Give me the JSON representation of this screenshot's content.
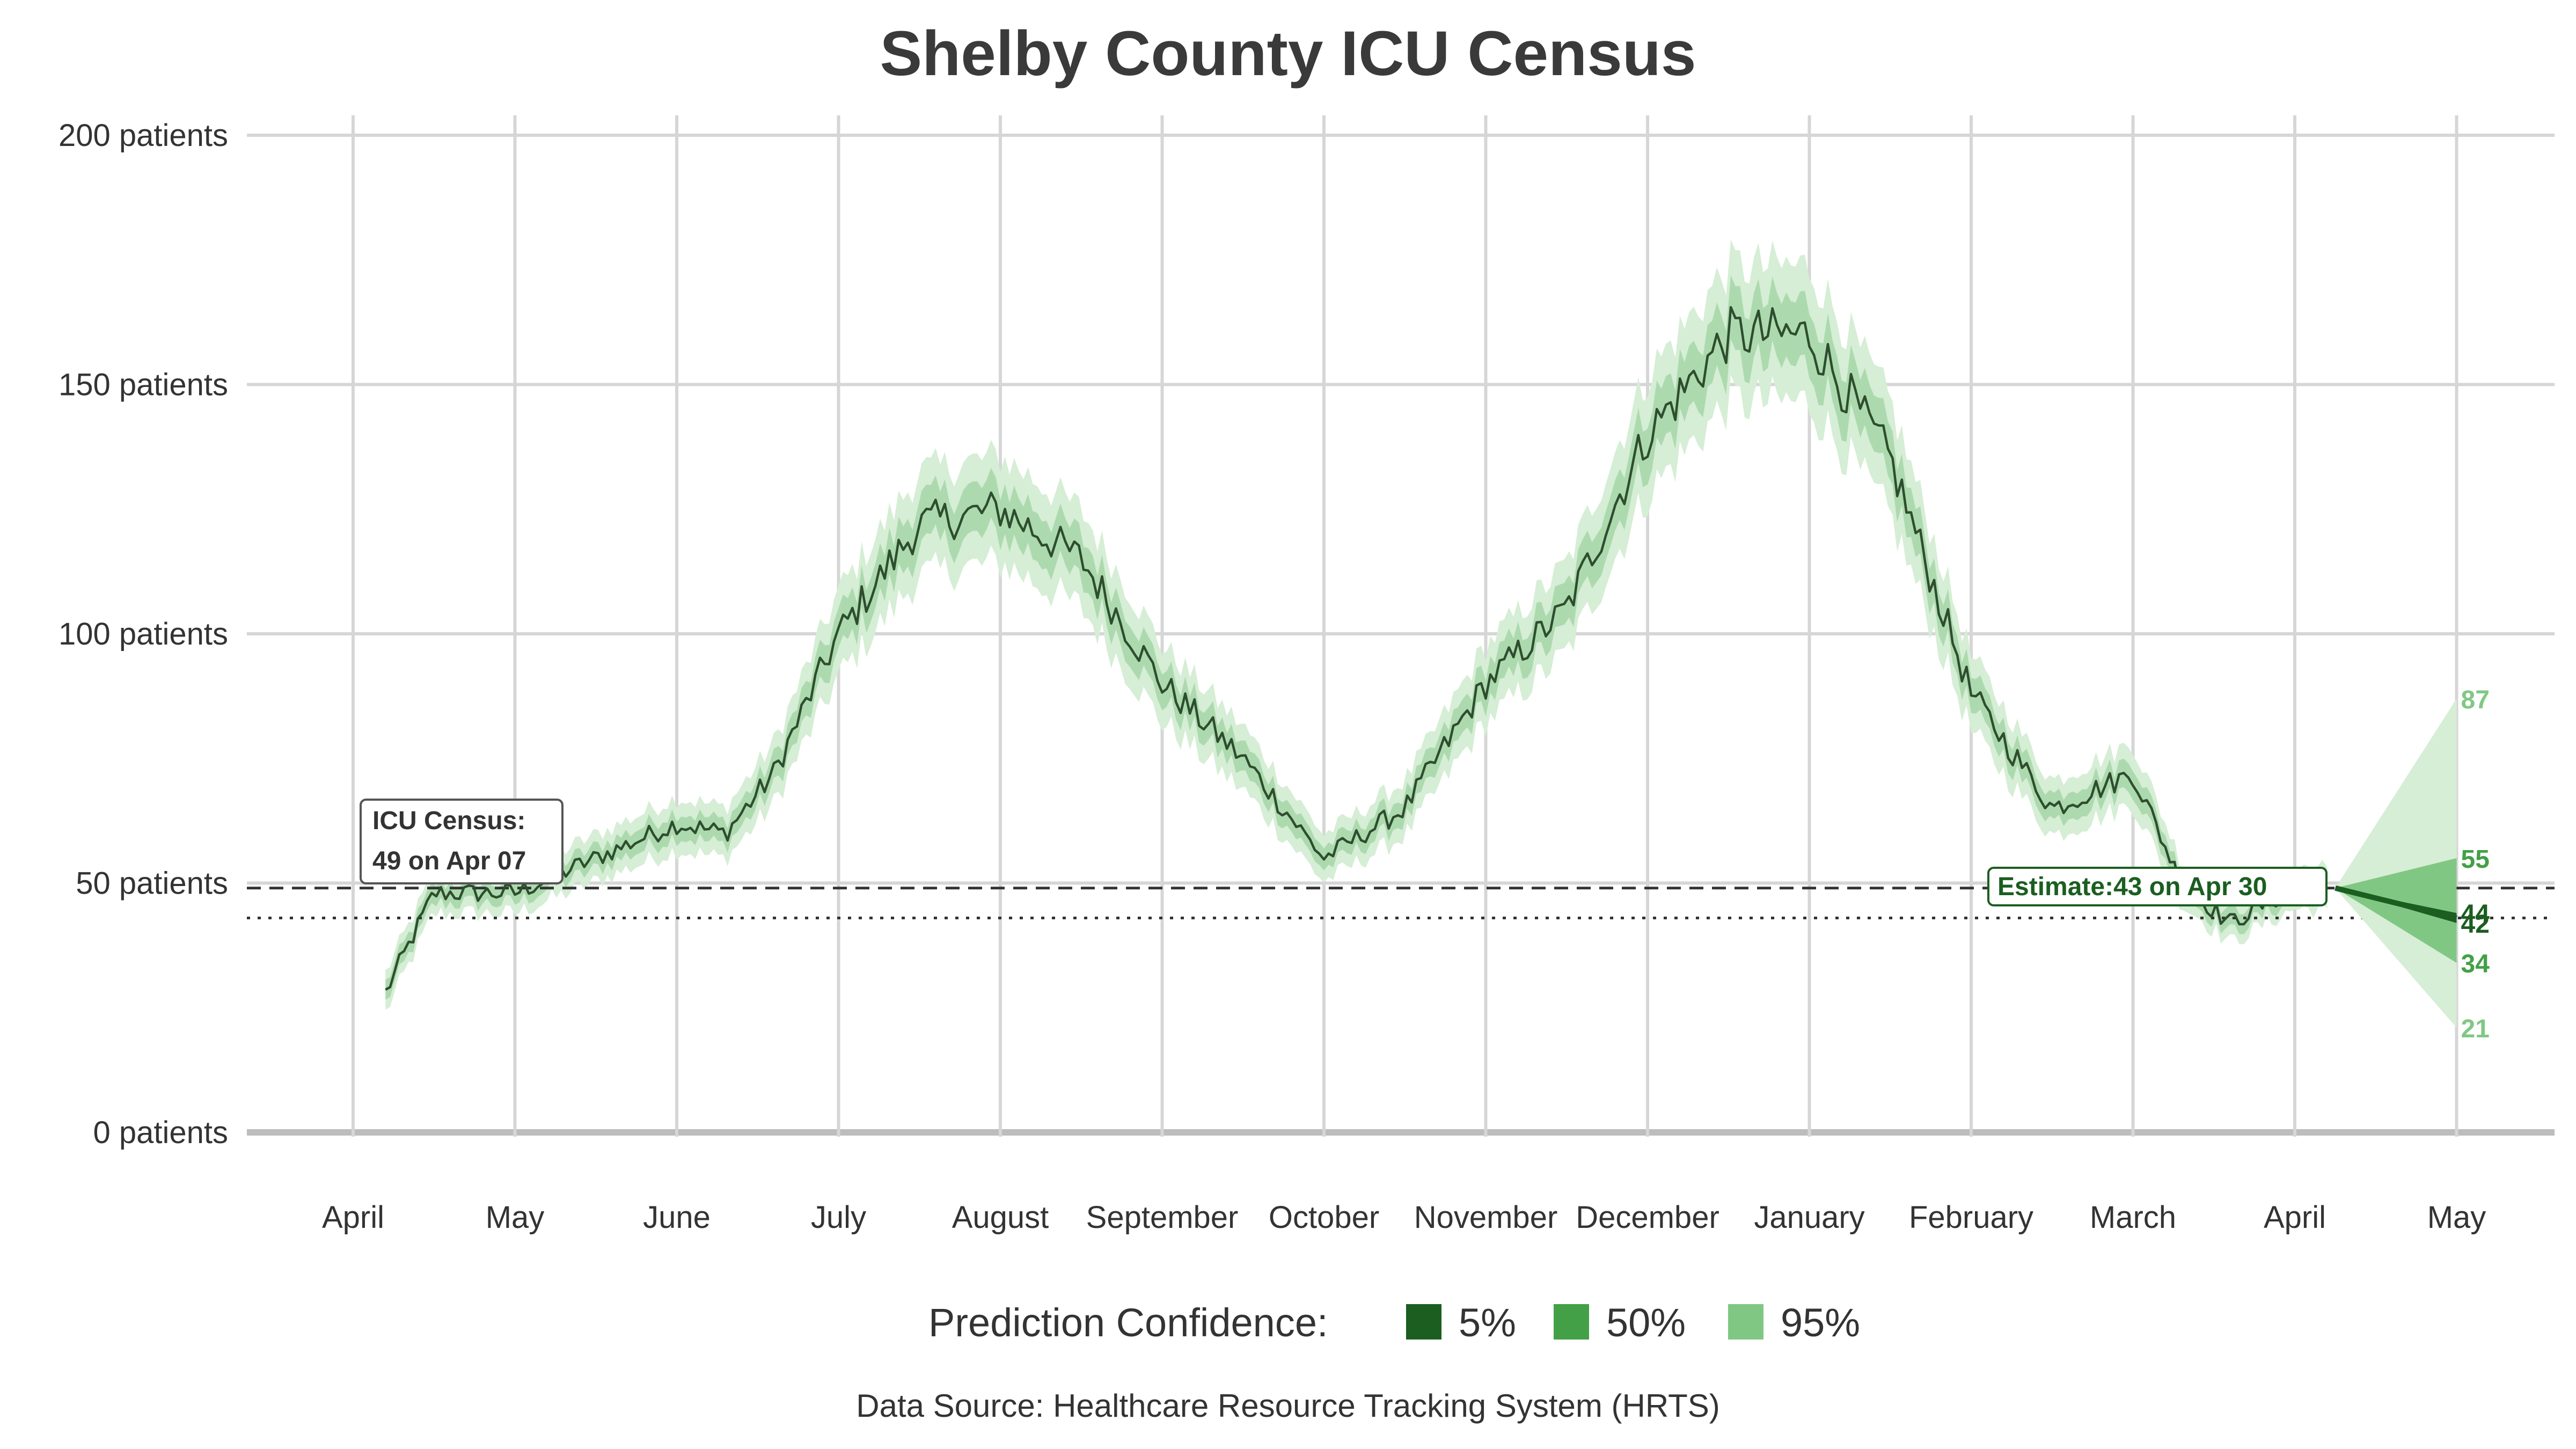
{
  "chart_data": {
    "type": "line",
    "title": "Shelby County ICU Census",
    "xlabel": "",
    "ylabel": "",
    "ylim": [
      0,
      200
    ],
    "y_ticks": [
      {
        "value": 0,
        "label": "0 patients"
      },
      {
        "value": 50,
        "label": "50 patients"
      },
      {
        "value": 100,
        "label": "100 patients"
      },
      {
        "value": 150,
        "label": "150 patients"
      },
      {
        "value": 200,
        "label": "200 patients"
      }
    ],
    "x_ticks": [
      "April",
      "May",
      "June",
      "July",
      "August",
      "September",
      "October",
      "November",
      "December",
      "January",
      "February",
      "March",
      "April",
      "May"
    ],
    "grid": true,
    "colors": {
      "c5": "#1b5e20",
      "c50": "#43a047",
      "c95": "#81c784",
      "band_inner": "#a5d6a7",
      "band_outer": "#d5eed5",
      "line": "#2e4d2e"
    },
    "series": {
      "census_monthly": [
        {
          "month": 0.2,
          "value": 28
        },
        {
          "month": 0.5,
          "value": 48
        },
        {
          "month": 1.0,
          "value": 48
        },
        {
          "month": 1.5,
          "value": 55
        },
        {
          "month": 2.0,
          "value": 62
        },
        {
          "month": 2.3,
          "value": 60
        },
        {
          "month": 2.6,
          "value": 72
        },
        {
          "month": 3.0,
          "value": 100
        },
        {
          "month": 3.5,
          "value": 122
        },
        {
          "month": 4.0,
          "value": 125
        },
        {
          "month": 4.5,
          "value": 115
        },
        {
          "month": 5.0,
          "value": 90
        },
        {
          "month": 5.5,
          "value": 75
        },
        {
          "month": 6.0,
          "value": 55
        },
        {
          "month": 6.5,
          "value": 65
        },
        {
          "month": 7.0,
          "value": 90
        },
        {
          "month": 7.5,
          "value": 105
        },
        {
          "month": 8.0,
          "value": 140
        },
        {
          "month": 8.5,
          "value": 160
        },
        {
          "month": 9.0,
          "value": 160
        },
        {
          "month": 9.5,
          "value": 135
        },
        {
          "month": 10.0,
          "value": 88
        },
        {
          "month": 10.5,
          "value": 65
        },
        {
          "month": 11.0,
          "value": 72
        },
        {
          "month": 11.3,
          "value": 50
        },
        {
          "month": 11.6,
          "value": 42
        },
        {
          "month": 12.0,
          "value": 49
        },
        {
          "month": 12.2,
          "value": 49
        }
      ],
      "forecast": {
        "start_month": 12.25,
        "end_month": 13.0,
        "start_value": 49,
        "median_end": 43,
        "band5_end": [
          42,
          44
        ],
        "band50_end": [
          34,
          55
        ],
        "band95_end": [
          21,
          87
        ]
      }
    },
    "reference_lines": [
      {
        "style": "dashed",
        "value": 49
      },
      {
        "style": "dotted",
        "value": 43
      }
    ],
    "annotations": {
      "current": {
        "line1": "ICU Census:",
        "line2": "49 on Apr 07"
      },
      "estimate": {
        "text": "Estimate:43 on Apr 30"
      }
    },
    "end_labels": [
      {
        "value": 87,
        "text": "87",
        "tone": "c95"
      },
      {
        "value": 55,
        "text": "55",
        "tone": "c50"
      },
      {
        "value": 44,
        "text": "44",
        "tone": "c5"
      },
      {
        "value": 42,
        "text": "42",
        "tone": "c5"
      },
      {
        "value": 34,
        "text": "34",
        "tone": "c50"
      },
      {
        "value": 21,
        "text": "21",
        "tone": "c95"
      }
    ],
    "legend": {
      "title": "Prediction Confidence:",
      "position": "bottom",
      "items": [
        {
          "label": "5%",
          "color": "#1b5e20"
        },
        {
          "label": "50%",
          "color": "#43a047"
        },
        {
          "label": "95%",
          "color": "#81c784"
        }
      ]
    },
    "caption": "Data Source: Healthcare Resource Tracking System (HRTS)"
  }
}
